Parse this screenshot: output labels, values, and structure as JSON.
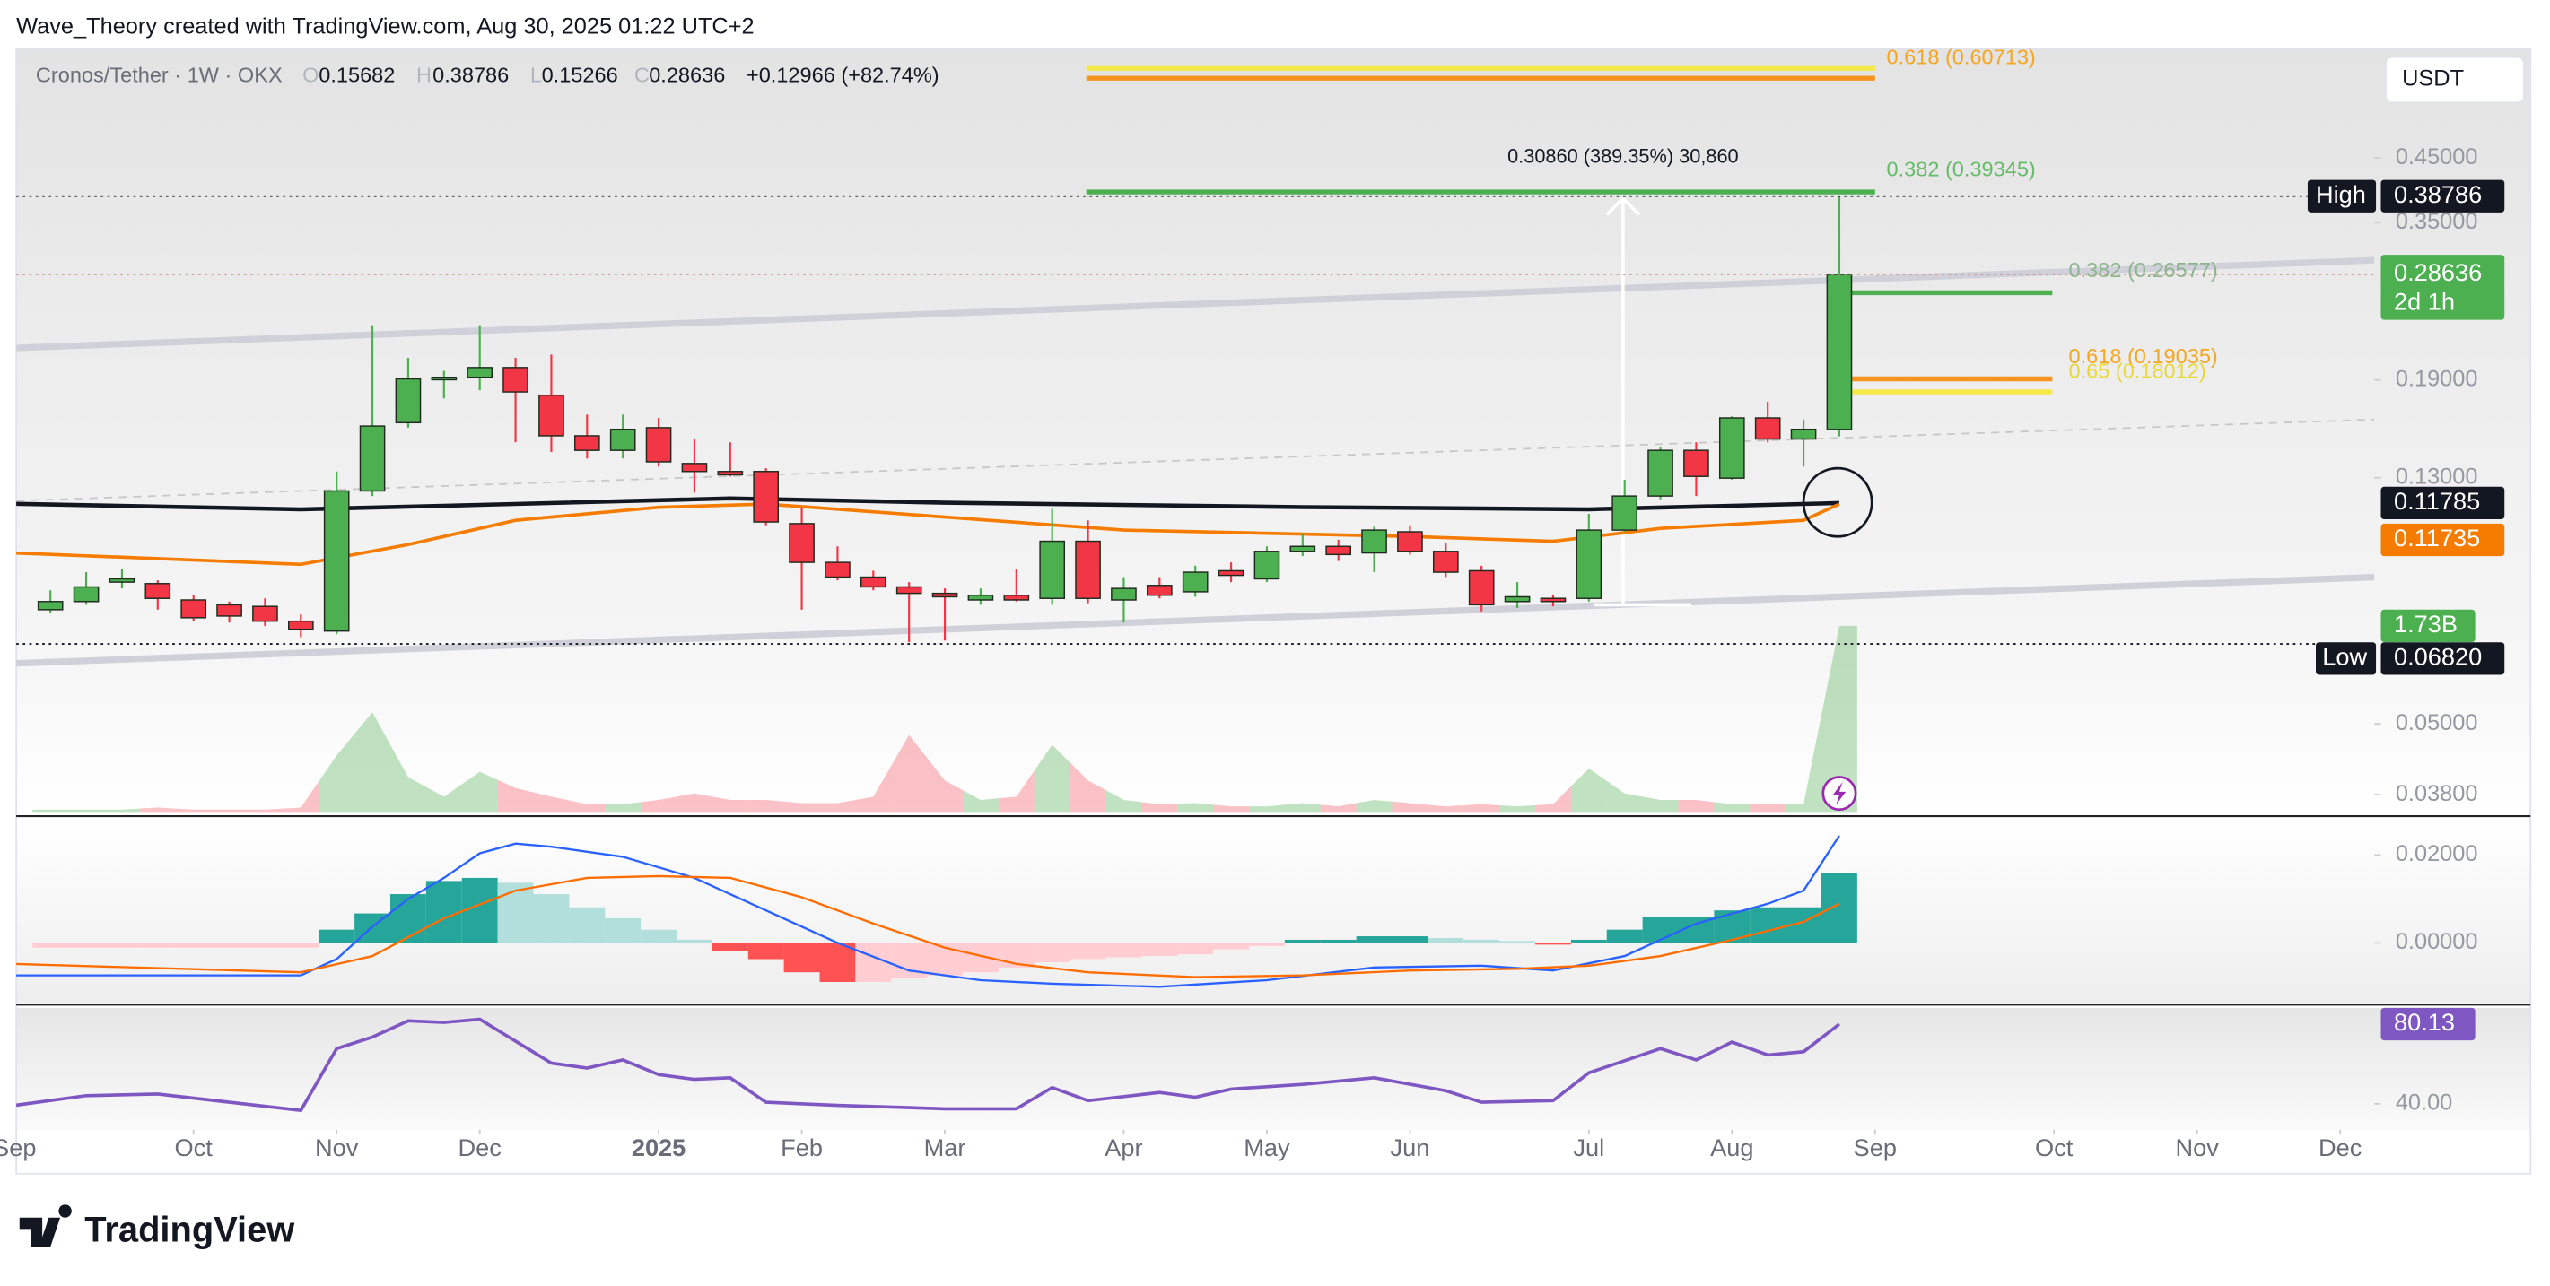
{
  "header": "Wave_Theory created with TradingView.com, Aug 30, 2025 01:22 UTC+2",
  "brand": "TradingView",
  "chart_data": {
    "type": "candlestick",
    "legend": {
      "symbol": "Cronos/Tether · 1W · OKX",
      "fields": [
        "O",
        "H",
        "L",
        "C"
      ],
      "change": "+0.12966 (+82.74%)"
    },
    "currency": "USDT",
    "categories": [
      null,
      null,
      null,
      null,
      null,
      null,
      null,
      null,
      null,
      null,
      null,
      null,
      null,
      null,
      null,
      null,
      null,
      null,
      null,
      null,
      null,
      null,
      null,
      null,
      null,
      null,
      null,
      null,
      null,
      null,
      null,
      null,
      null,
      null,
      null,
      null,
      null,
      null,
      null,
      null,
      null,
      null,
      null,
      null,
      null,
      null,
      null,
      null,
      null,
      null,
      null
    ],
    "xticks": [
      {
        "value": -1,
        "label": "Sep"
      },
      {
        "value": 4,
        "label": "Oct"
      },
      {
        "value": 8,
        "label": "Nov"
      },
      {
        "value": 12,
        "label": "Dec"
      },
      {
        "value": 17,
        "label": "2025"
      },
      {
        "value": 21,
        "label": "Feb"
      },
      {
        "value": 25,
        "label": "Mar"
      },
      {
        "value": 30,
        "label": "Apr"
      },
      {
        "value": 34,
        "label": "May"
      },
      {
        "value": 38,
        "label": "Jun"
      },
      {
        "value": 43,
        "label": "Jul"
      },
      {
        "value": 47,
        "label": "Aug"
      },
      {
        "value": 51,
        "label": "Sep"
      },
      {
        "value": 56,
        "label": "Oct"
      },
      {
        "value": 60,
        "label": "Nov"
      },
      {
        "value": 64,
        "label": "Dec"
      }
    ],
    "ohlc": [
      [
        0.0779,
        0.084,
        0.0769,
        0.0804
      ],
      [
        0.0804,
        0.0901,
        0.0794,
        0.0851
      ],
      [
        0.0867,
        0.0912,
        0.0846,
        0.0878
      ],
      [
        0.0862,
        0.0873,
        0.0779,
        0.0814
      ],
      [
        0.0809,
        0.0824,
        0.0745,
        0.0755
      ],
      [
        0.0794,
        0.0804,
        0.0741,
        0.076
      ],
      [
        0.0789,
        0.0814,
        0.0731,
        0.0745
      ],
      [
        0.0745,
        0.0765,
        0.07,
        0.0722
      ],
      [
        0.0717,
        0.1332,
        0.0708,
        0.1235
      ],
      [
        0.1235,
        0.235,
        0.1211,
        0.1589
      ],
      [
        0.161,
        0.2071,
        0.1579,
        0.1908
      ],
      [
        0.1908,
        0.1969,
        0.1769,
        0.192
      ],
      [
        0.192,
        0.235,
        0.1826,
        0.1994
      ],
      [
        0.1994,
        0.2071,
        0.1492,
        0.1814
      ],
      [
        0.1791,
        0.2097,
        0.1437,
        0.153
      ],
      [
        0.153,
        0.1661,
        0.1401,
        0.1446
      ],
      [
        0.1446,
        0.1661,
        0.1401,
        0.1569
      ],
      [
        0.1579,
        0.164,
        0.1357,
        0.1383
      ],
      [
        0.1374,
        0.1511,
        0.1227,
        0.1332
      ],
      [
        0.1332,
        0.1492,
        0.1307,
        0.1315
      ],
      [
        0.1332,
        0.1349,
        0.1081,
        0.1095
      ],
      [
        0.1088,
        0.1159,
        0.0779,
        0.0936
      ],
      [
        0.0936,
        0.0996,
        0.0873,
        0.0884
      ],
      [
        0.0884,
        0.0906,
        0.084,
        0.0851
      ],
      [
        0.0851,
        0.0867,
        0.0687,
        0.083
      ],
      [
        0.083,
        0.0846,
        0.0691,
        0.0819
      ],
      [
        0.0809,
        0.0846,
        0.0794,
        0.0824
      ],
      [
        0.0824,
        0.0912,
        0.0804,
        0.0809
      ],
      [
        0.0814,
        0.1152,
        0.0794,
        0.1016
      ],
      [
        0.1016,
        0.1102,
        0.0799,
        0.0814
      ],
      [
        0.0809,
        0.0884,
        0.0741,
        0.0846
      ],
      [
        0.0856,
        0.0884,
        0.0814,
        0.0824
      ],
      [
        0.0835,
        0.0924,
        0.0819,
        0.0901
      ],
      [
        0.0906,
        0.0936,
        0.0867,
        0.089
      ],
      [
        0.0878,
        0.0996,
        0.0867,
        0.0977
      ],
      [
        0.0977,
        0.1048,
        0.0959,
        0.0996
      ],
      [
        0.0996,
        0.1022,
        0.0941,
        0.0965
      ],
      [
        0.0971,
        0.1075,
        0.0901,
        0.1061
      ],
      [
        0.1054,
        0.1081,
        0.0965,
        0.0977
      ],
      [
        0.0977,
        0.1009,
        0.0884,
        0.0901
      ],
      [
        0.0906,
        0.0924,
        0.0774,
        0.0794
      ],
      [
        0.0804,
        0.0867,
        0.0784,
        0.0819
      ],
      [
        0.0814,
        0.0824,
        0.0789,
        0.0804
      ],
      [
        0.0814,
        0.113,
        0.0804,
        0.1061
      ],
      [
        0.1061,
        0.129,
        0.1054,
        0.1211
      ],
      [
        0.1211,
        0.1464,
        0.1196,
        0.1446
      ],
      [
        0.1446,
        0.1492,
        0.1211,
        0.1307
      ],
      [
        0.1298,
        0.1651,
        0.129,
        0.164
      ],
      [
        0.164,
        0.1746,
        0.1492,
        0.1511
      ],
      [
        0.1511,
        0.163,
        0.1357,
        0.1569
      ],
      [
        0.15682,
        0.38786,
        0.15266,
        0.28636
      ]
    ],
    "up_color": "#4caf50",
    "down_color": "#f23645",
    "log": true,
    "grid": false,
    "ylim": [
      0.0354,
      0.687
    ],
    "yticks": [
      {
        "value": 0.45,
        "label": "0.45000"
      },
      {
        "value": 0.35,
        "label": "0.35000"
      },
      {
        "value": 0.19,
        "label": "0.19000"
      },
      {
        "value": 0.13,
        "label": "0.13000"
      },
      {
        "value": 0.05,
        "label": "0.05000"
      },
      {
        "value": 0.038,
        "label": "0.03800"
      }
    ],
    "lines": [
      {
        "color": "#131722",
        "x": [
          -1,
          7,
          12,
          19,
          25,
          35,
          43,
          50
        ],
        "values": [
          0.1175,
          0.115,
          0.117,
          0.12,
          0.118,
          0.116,
          0.115,
          0.11785
        ]
      },
      {
        "color": "#f57c00",
        "x": [
          -1,
          7,
          10,
          13,
          17,
          20,
          25,
          30,
          38,
          42,
          45,
          49,
          50
        ],
        "values": [
          0.0971,
          0.0929,
          0.1003,
          0.1102,
          0.1159,
          0.1174,
          0.1116,
          0.1061,
          0.1035,
          0.1016,
          0.1068,
          0.1102,
          0.11735
        ]
      }
    ],
    "high_label": "High",
    "low_label": "Low",
    "low": {
      "value": 0.0682,
      "label": "0.06820"
    },
    "countdown": "2d 1h",
    "annotations": [
      {
        "text": "0.618 (0.60713)"
      },
      {
        "text": "0.30860 (389.35%) 30,860"
      },
      {
        "text": "0.382 (0.39345)"
      },
      {
        "text": "0.382 (0.26577)"
      },
      {
        "text": "0.618 (0.19035)"
      },
      {
        "text": "0.65 (0.18012)"
      }
    ],
    "volume": {
      "ylim": [
        0,
        2
      ],
      "colors": [
        "rgba(76,175,80,0.35)",
        "rgba(242,54,69,0.3)"
      ],
      "values": [
        0.03,
        0.03,
        0.03,
        0.05,
        0.03,
        0.03,
        0.03,
        0.05,
        0.53,
        0.93,
        0.33,
        0.15,
        0.38,
        0.23,
        0.15,
        0.08,
        0.08,
        0.12,
        0.18,
        0.12,
        0.12,
        0.09,
        0.09,
        0.15,
        0.72,
        0.3,
        0.12,
        0.15,
        0.63,
        0.3,
        0.12,
        0.08,
        0.09,
        0.06,
        0.06,
        0.09,
        0.06,
        0.12,
        0.09,
        0.06,
        0.08,
        0.06,
        0.08,
        0.41,
        0.18,
        0.12,
        0.12,
        0.08,
        0.08,
        0.08,
        1.73
      ],
      "value_labels": [
        null,
        null,
        null,
        null,
        null,
        null,
        null,
        null,
        null,
        null,
        null,
        null,
        null,
        null,
        null,
        null,
        null,
        null,
        null,
        null,
        null,
        null,
        null,
        null,
        null,
        null,
        null,
        null,
        null,
        null,
        null,
        null,
        null,
        null,
        null,
        null,
        null,
        null,
        null,
        null,
        null,
        null,
        null,
        null,
        null,
        null,
        null,
        null,
        null,
        null,
        "1.73B"
      ]
    },
    "macd": {
      "ylim": [
        -0.0137,
        0.0285
      ],
      "yticks": [
        {
          "value": 0.02,
          "label": "0.02000"
        },
        {
          "value": 0,
          "label": "0.00000"
        }
      ],
      "histogram_colors": [
        "#26a69a",
        "#b2dfdb",
        "#ff5252",
        "#ffcdd2"
      ],
      "histogram": [
        -0.0011,
        -0.0011,
        -0.0011,
        -0.0011,
        -0.0011,
        -0.0011,
        -0.0011,
        -0.0011,
        0.003,
        0.0067,
        0.0111,
        0.0141,
        0.0148,
        0.0137,
        0.0111,
        0.0081,
        0.0056,
        0.003,
        0.0007,
        -0.0019,
        -0.0037,
        -0.0067,
        -0.0089,
        -0.0089,
        -0.0081,
        -0.0074,
        -0.0067,
        -0.0056,
        -0.0044,
        -0.0037,
        -0.0033,
        -0.003,
        -0.0026,
        -0.0015,
        -0.0007,
        0.0007,
        0.0007,
        0.0015,
        0.0015,
        0.0011,
        0.0007,
        0.0004,
        -0.0004,
        0.0007,
        0.003,
        0.0059,
        0.0059,
        0.0074,
        0.0081,
        0.0081,
        0.0159
      ],
      "lines": [
        {
          "color": "#2962ff",
          "x": [
            -1,
            7,
            8,
            9,
            10,
            11,
            12,
            13,
            14,
            16,
            18,
            20,
            22,
            24,
            26,
            28,
            31,
            34,
            37,
            40,
            42,
            44,
            46,
            48,
            49,
            50
          ],
          "values": [
            -0.0074,
            -0.0074,
            -0.0037,
            0.0037,
            0.01,
            0.0148,
            0.0204,
            0.0226,
            0.0219,
            0.0196,
            0.0148,
            0.0074,
            0,
            -0.0063,
            -0.0085,
            -0.0093,
            -0.01,
            -0.0085,
            -0.0056,
            -0.0052,
            -0.0063,
            -0.003,
            0.0044,
            0.0089,
            0.0119,
            0.0244
          ]
        },
        {
          "color": "#ff6d00",
          "x": [
            -1,
            7,
            9,
            11,
            13,
            15,
            17,
            19,
            21,
            23,
            25,
            27,
            29,
            32,
            35,
            38,
            41,
            43,
            45,
            47,
            49,
            50
          ],
          "values": [
            -0.0048,
            -0.0067,
            -0.003,
            0.0056,
            0.0119,
            0.0148,
            0.0152,
            0.0148,
            0.0104,
            0.0044,
            -0.0011,
            -0.0048,
            -0.0067,
            -0.0078,
            -0.0074,
            -0.0063,
            -0.0059,
            -0.0052,
            -0.003,
            0.0007,
            0.0048,
            0.0089
          ]
        }
      ]
    },
    "rsi": {
      "ylim": [
        26.9,
        88.3
      ],
      "yticks": [
        {
          "value": 40,
          "label": "40.00"
        }
      ],
      "color": "#7e57c2",
      "x": [
        -1,
        1,
        3,
        5,
        7,
        8,
        9,
        10,
        11,
        12,
        14,
        15,
        16,
        17,
        18,
        19,
        20,
        22,
        25,
        27,
        28,
        29,
        31,
        32,
        33,
        35,
        37,
        39,
        40,
        42,
        43,
        45,
        46,
        47,
        48,
        49,
        50
      ],
      "values": [
        39.2,
        44.1,
        44.9,
        40.8,
        36.7,
        67.8,
        73.6,
        81.8,
        81,
        82.6,
        60.5,
        58,
        62.1,
        54.7,
        52.3,
        53.1,
        40.8,
        39.2,
        37.5,
        37.5,
        48.2,
        41.6,
        45.7,
        43.3,
        47.4,
        49.8,
        53.1,
        46.6,
        40.8,
        41.6,
        55.6,
        67.8,
        62.1,
        71.1,
        64.6,
        66.2,
        80.13
      ]
    }
  }
}
